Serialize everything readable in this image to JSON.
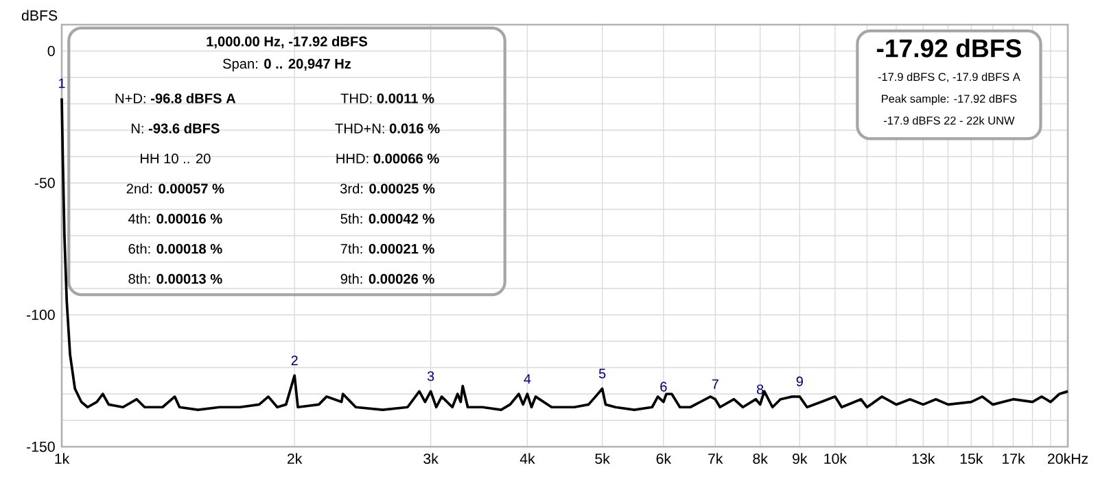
{
  "chart_data": {
    "type": "line",
    "ylabel": "dBFS",
    "log": "x",
    "grid": true,
    "marker": "none",
    "line_style": "solid",
    "xlim": [
      1,
      20
    ],
    "ylim": [
      -150,
      10
    ],
    "xticks": [
      {
        "value": 1,
        "label": "1k"
      },
      {
        "value": 2,
        "label": "2k"
      },
      {
        "value": 3,
        "label": "3k"
      },
      {
        "value": 4,
        "label": "4k"
      },
      {
        "value": 5,
        "label": "5k"
      },
      {
        "value": 6,
        "label": "6k"
      },
      {
        "value": 7,
        "label": "7k"
      },
      {
        "value": 8,
        "label": "8k"
      },
      {
        "value": 9,
        "label": "9k"
      },
      {
        "value": 10,
        "label": "10k"
      },
      {
        "value": 11,
        "label": null
      },
      {
        "value": 12,
        "label": null
      },
      {
        "value": 13,
        "label": "13k"
      },
      {
        "value": 14,
        "label": null
      },
      {
        "value": 15,
        "label": "15k"
      },
      {
        "value": 16,
        "label": null
      },
      {
        "value": 17,
        "label": "17k"
      },
      {
        "value": 18,
        "label": null
      },
      {
        "value": 19,
        "label": null
      },
      {
        "value": 20,
        "label": "20kHz"
      }
    ],
    "yticks": [
      -150,
      {
        "value": -140,
        "label": null
      },
      {
        "value": -130,
        "label": null
      },
      {
        "value": -120,
        "label": null
      },
      {
        "value": -110,
        "label": null
      },
      -100,
      {
        "value": -90,
        "label": null
      },
      {
        "value": -80,
        "label": null
      },
      {
        "value": -70,
        "label": null
      },
      {
        "value": -60,
        "label": null
      },
      -50,
      {
        "value": -40,
        "label": null
      },
      {
        "value": -30,
        "label": null
      },
      {
        "value": -20,
        "label": null
      },
      {
        "value": -10,
        "label": null
      },
      0
    ],
    "series": [
      {
        "color": "#000000",
        "x": [
          1,
          1.003,
          1.008,
          1.015,
          1.025,
          1.04,
          1.06,
          1.08,
          1.11,
          1.13,
          1.15,
          1.2,
          1.25,
          1.28,
          1.35,
          1.4,
          1.42,
          1.5,
          1.6,
          1.7,
          1.8,
          1.85,
          1.9,
          1.95,
          2,
          2.02,
          2.15,
          2.2,
          2.3,
          2.31,
          2.4,
          2.6,
          2.8,
          2.9,
          2.95,
          3,
          3.05,
          3.1,
          3.2,
          3.25,
          3.28,
          3.3,
          3.35,
          3.5,
          3.7,
          3.8,
          3.9,
          3.95,
          4,
          4.05,
          4.1,
          4.3,
          4.6,
          4.8,
          4.9,
          5,
          5.05,
          5.2,
          5.5,
          5.8,
          5.9,
          6,
          6.05,
          6.15,
          6.3,
          6.5,
          6.8,
          6.9,
          7,
          7.1,
          7.4,
          7.6,
          7.9,
          8,
          8.1,
          8.3,
          8.5,
          8.8,
          9,
          9.2,
          9.6,
          10,
          10.2,
          10.8,
          11,
          11.5,
          12,
          12.5,
          13,
          13.5,
          14,
          15,
          15.5,
          16,
          17,
          18,
          18.5,
          19,
          19.5,
          20
        ],
        "values": [
          -17.92,
          -40,
          -70,
          -95,
          -115,
          -128,
          -133,
          -135,
          -133,
          -130,
          -134,
          -135,
          -132,
          -135,
          -135,
          -131,
          -135,
          -136,
          -135,
          -135,
          -134,
          -131,
          -135,
          -134,
          -123,
          -135,
          -134,
          -131,
          -133,
          -130,
          -135,
          -136,
          -135,
          -129,
          -133,
          -129,
          -135,
          -131,
          -135,
          -130,
          -133,
          -127,
          -135,
          -135,
          -136,
          -134,
          -130,
          -134,
          -130,
          -135,
          -131,
          -135,
          -135,
          -134,
          -131,
          -128,
          -134,
          -135,
          -136,
          -135,
          -131,
          -133,
          -130,
          -130,
          -135,
          -135,
          -132,
          -131,
          -132,
          -135,
          -132,
          -135,
          -132,
          -134,
          -129,
          -135,
          -132,
          -131,
          -131,
          -135,
          -133,
          -131,
          -135,
          -132,
          -135,
          -131,
          -134,
          -132,
          -134,
          -132,
          -134,
          -133,
          -131,
          -134,
          -132,
          -133,
          -131,
          -133,
          -130,
          -129
        ]
      }
    ],
    "annotations": [
      "**1,000.00 Hz, -17.92 dBFS**",
      "Span: **0 .. 20,947 Hz**",
      "N+D: **-96.8 dBFS A**",
      "THD: **0.0011 %**",
      "N: **-93.6 dBFS**",
      "THD+N: **0.016 %**",
      "HH 10 .. 20",
      "HHD: **0.00066 %**",
      "2nd: **0.00057 %**",
      "3rd: **0.00025 %**",
      "4th: **0.00016 %**",
      "5th: **0.00042 %**",
      "6th: **0.00018 %**",
      "7th: **0.00021 %**",
      "8th: **0.00013 %**",
      "9th: **0.00026 %**",
      "-17.92 dBFS",
      "-17.9 dBFS C, -17.9 dBFS A",
      "Peak sample: -17.92 dBFS",
      "-17.9 dBFS 22 - 22k UNW",
      {
        "text": "1",
        "x": 1,
        "y": -17.92
      },
      {
        "text": "2",
        "x": 2,
        "y": -123
      },
      {
        "text": "3",
        "x": 3,
        "y": -129
      },
      {
        "text": "4",
        "x": 4,
        "y": -130
      },
      {
        "text": "5",
        "x": 5,
        "y": -128
      },
      {
        "text": "6",
        "x": 6,
        "y": -133
      },
      {
        "text": "7",
        "x": 7,
        "y": -132
      },
      {
        "text": "8",
        "x": 8,
        "y": -134
      },
      {
        "text": "9",
        "x": 9,
        "y": -131
      }
    ]
  }
}
